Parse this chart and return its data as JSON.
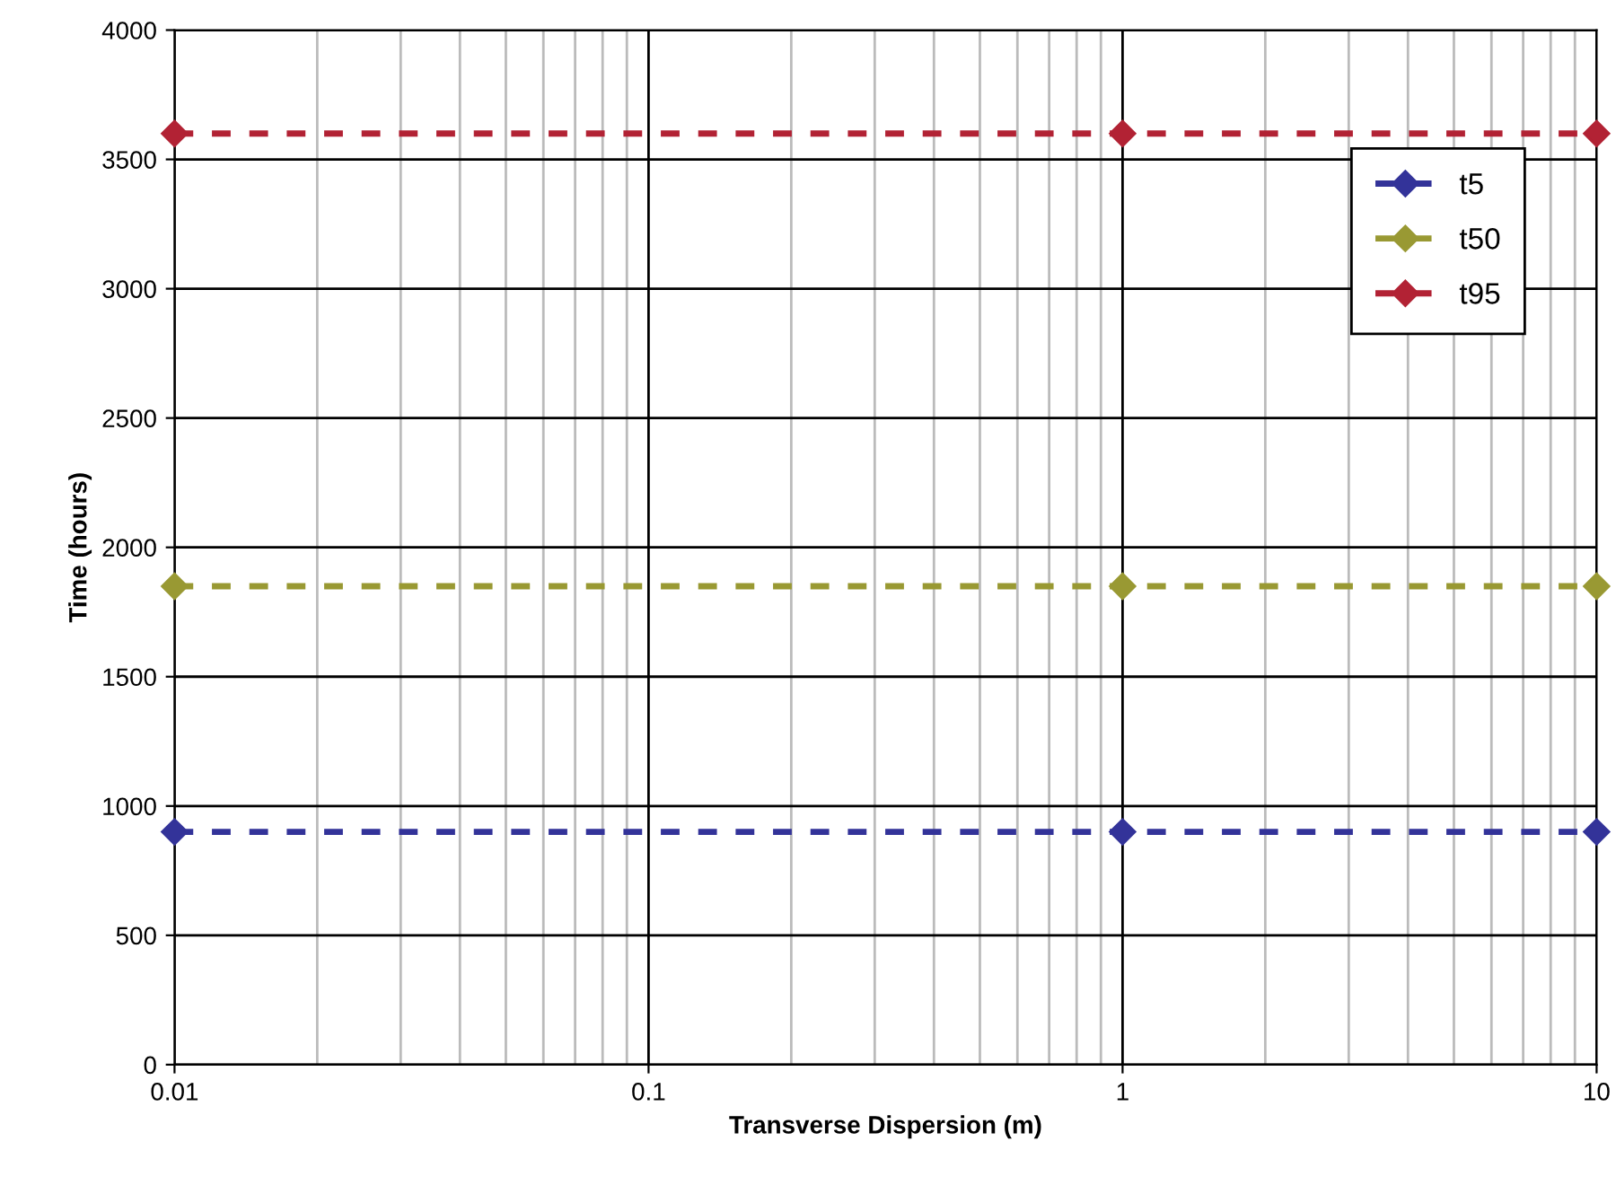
{
  "chart_data": {
    "type": "line",
    "xlabel": "Transverse Dispersion (m)",
    "ylabel": "Time (hours)",
    "x": [
      0.01,
      1,
      10
    ],
    "series": [
      {
        "name": "t5",
        "color": "#333399",
        "values": [
          900,
          900,
          900
        ]
      },
      {
        "name": "t50",
        "color": "#999933",
        "values": [
          1850,
          1850,
          1850
        ]
      },
      {
        "name": "t95",
        "color": "#b22234",
        "values": [
          3600,
          3600,
          3600
        ]
      }
    ],
    "log": "x",
    "xlim": [
      0.01,
      10
    ],
    "xticks": [
      0.01,
      0.1,
      1,
      10
    ],
    "ylim": [
      0,
      4000
    ],
    "yticks": [
      0,
      500,
      1000,
      1500,
      2000,
      2500,
      3000,
      3500,
      4000
    ],
    "grid": true,
    "legend": "top right",
    "marker": "diamond",
    "line_style": "dashed"
  }
}
